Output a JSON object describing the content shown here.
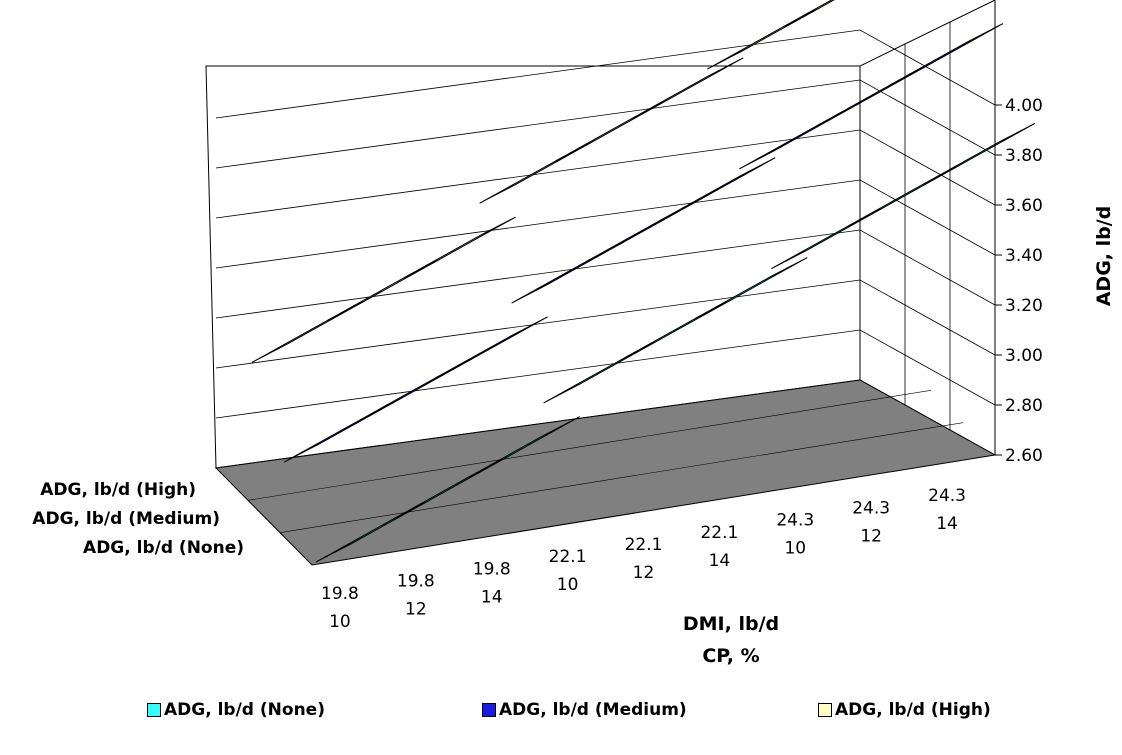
{
  "chart_data": {
    "type": "3d-line-ribbon",
    "x_label_line1": "DMI, lb/d",
    "x_label_line2": "CP, %",
    "ylabel": "ADG, lb/d",
    "ylim": [
      2.6,
      4.2
    ],
    "y_ticks": [
      "2.60",
      "2.80",
      "3.00",
      "3.20",
      "3.40",
      "3.60",
      "3.80",
      "4.00"
    ],
    "categories": [
      {
        "dmi": "19.8",
        "cp": "10"
      },
      {
        "dmi": "19.8",
        "cp": "12"
      },
      {
        "dmi": "19.8",
        "cp": "14"
      },
      {
        "dmi": "22.1",
        "cp": "10"
      },
      {
        "dmi": "22.1",
        "cp": "12"
      },
      {
        "dmi": "22.1",
        "cp": "14"
      },
      {
        "dmi": "24.3",
        "cp": "10"
      },
      {
        "dmi": "24.3",
        "cp": "12"
      },
      {
        "dmi": "24.3",
        "cp": "14"
      }
    ],
    "series": [
      {
        "name": "ADG, lb/d (None)",
        "color": "#33ffff",
        "values": [
          2.56,
          2.68,
          2.8,
          3.05,
          3.17,
          3.29,
          3.44,
          3.56,
          3.68
        ]
      },
      {
        "name": "ADG, lb/d (Medium)",
        "color": "#1a1ae6",
        "values": [
          2.83,
          2.95,
          3.07,
          3.32,
          3.44,
          3.56,
          3.71,
          3.83,
          3.95
        ]
      },
      {
        "name": "ADG, lb/d (High)",
        "color": "#ffffc0",
        "values": [
          3.1,
          3.22,
          3.34,
          3.59,
          3.71,
          3.83,
          3.98,
          4.1,
          4.22
        ]
      }
    ],
    "depth_labels": [
      "ADG, lb/d (High)",
      "ADG, lb/d (Medium)",
      "ADG, lb/d (None)"
    ],
    "floor_color": "#808080",
    "grid": true,
    "legend_position": "bottom"
  },
  "legend": {
    "items": [
      "ADG, lb/d (None)",
      "ADG, lb/d (Medium)",
      "ADG, lb/d (High)"
    ]
  }
}
